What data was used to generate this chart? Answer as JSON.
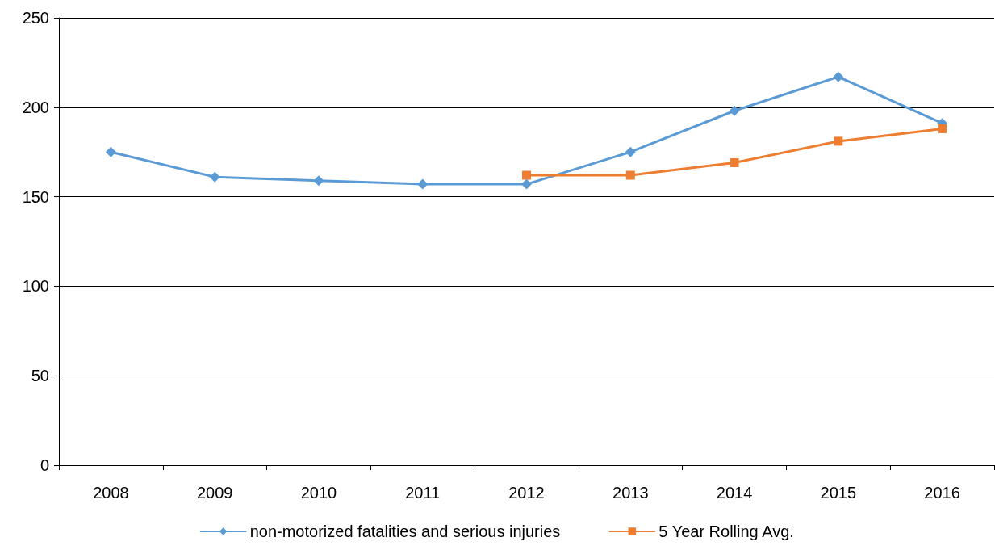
{
  "chart_data": {
    "type": "line",
    "categories": [
      "2008",
      "2009",
      "2010",
      "2011",
      "2012",
      "2013",
      "2014",
      "2015",
      "2016"
    ],
    "series": [
      {
        "name": "non-motorized fatalities and serious injuries",
        "color": "#5b9bd5",
        "marker": "diamond",
        "values": [
          175,
          161,
          159,
          157,
          157,
          175,
          198,
          217,
          191
        ]
      },
      {
        "name": "5 Year Rolling Avg.",
        "color": "#ed7d31",
        "marker": "square",
        "values": [
          null,
          null,
          null,
          null,
          162,
          162,
          169,
          181,
          188
        ]
      }
    ],
    "ylim": [
      0,
      250
    ],
    "yticks": [
      0,
      50,
      100,
      150,
      200,
      250
    ],
    "grid": "y",
    "legend": "bottom",
    "line_style": "solid"
  }
}
